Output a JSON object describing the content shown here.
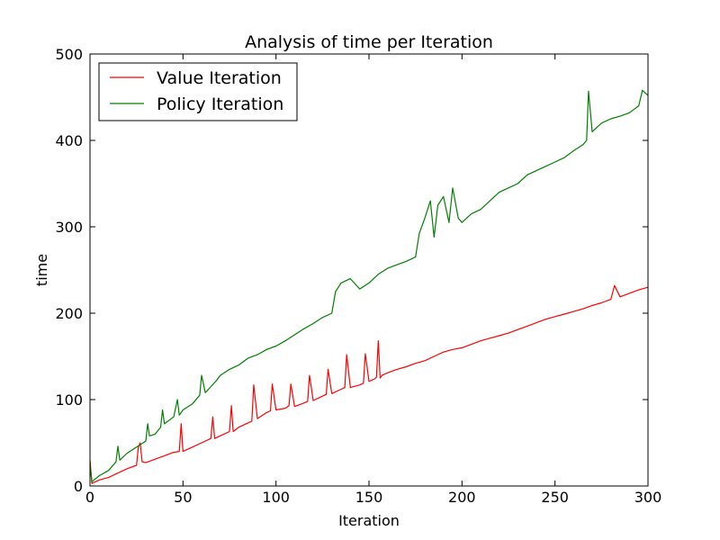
{
  "chart_data": {
    "type": "line",
    "title": "Analysis of time per Iteration",
    "xlabel": "Iteration",
    "ylabel": "time",
    "xlim": [
      0,
      300
    ],
    "ylim": [
      0,
      500
    ],
    "xticks": [
      "0",
      "50",
      "100",
      "150",
      "200",
      "250",
      "300"
    ],
    "yticks": [
      "0",
      "100",
      "200",
      "300",
      "400",
      "500"
    ],
    "grid": false,
    "legend_position": "top-left",
    "series": [
      {
        "name": "Value Iteration",
        "color": "#ff0000",
        "x": [
          0,
          1,
          5,
          10,
          15,
          20,
          25,
          26,
          27,
          28,
          30,
          35,
          40,
          45,
          48,
          49,
          50,
          55,
          60,
          65,
          66,
          67,
          70,
          75,
          76,
          77,
          80,
          85,
          87,
          88,
          90,
          95,
          97,
          98,
          100,
          105,
          107,
          108,
          110,
          115,
          117,
          118,
          120,
          125,
          127,
          128,
          130,
          135,
          137,
          138,
          140,
          145,
          147,
          148,
          150,
          153,
          154,
          155,
          156,
          157,
          160,
          165,
          170,
          175,
          180,
          185,
          190,
          195,
          200,
          205,
          210,
          215,
          220,
          225,
          230,
          235,
          240,
          245,
          250,
          255,
          260,
          265,
          270,
          275,
          280,
          282,
          285,
          290,
          295,
          300
        ],
        "y": [
          30,
          3,
          7,
          10,
          15,
          20,
          24,
          45,
          50,
          28,
          27,
          31,
          35,
          39,
          40,
          72,
          40,
          45,
          50,
          55,
          80,
          55,
          58,
          63,
          93,
          63,
          68,
          73,
          75,
          117,
          78,
          85,
          87,
          118,
          88,
          90,
          93,
          118,
          92,
          96,
          98,
          128,
          99,
          104,
          106,
          135,
          107,
          112,
          114,
          152,
          114,
          117,
          119,
          153,
          121,
          124,
          126,
          168,
          125,
          128,
          131,
          135,
          138,
          142,
          145,
          150,
          155,
          158,
          160,
          164,
          168,
          171,
          174,
          177,
          181,
          185,
          189,
          193,
          196,
          199,
          202,
          205,
          209,
          212,
          216,
          232,
          219,
          223,
          227,
          230
        ]
      },
      {
        "name": "Policy Iteration",
        "color": "#008000",
        "x": [
          0,
          1,
          5,
          10,
          14,
          15,
          16,
          20,
          25,
          30,
          31,
          32,
          35,
          38,
          39,
          40,
          45,
          47,
          48,
          50,
          55,
          59,
          60,
          62,
          65,
          68,
          70,
          75,
          80,
          85,
          90,
          95,
          100,
          105,
          110,
          115,
          120,
          125,
          130,
          132,
          135,
          140,
          145,
          150,
          155,
          160,
          165,
          170,
          175,
          177,
          180,
          183,
          185,
          187,
          190,
          193,
          195,
          198,
          200,
          205,
          210,
          215,
          220,
          225,
          230,
          235,
          240,
          245,
          250,
          255,
          260,
          265,
          267,
          268,
          270,
          275,
          280,
          285,
          290,
          295,
          297,
          300
        ],
        "y": [
          25,
          5,
          12,
          18,
          28,
          46,
          30,
          38,
          45,
          52,
          72,
          58,
          60,
          68,
          88,
          72,
          80,
          100,
          82,
          88,
          95,
          105,
          128,
          108,
          115,
          122,
          128,
          135,
          140,
          148,
          152,
          158,
          162,
          168,
          175,
          182,
          188,
          195,
          200,
          225,
          235,
          240,
          228,
          235,
          245,
          252,
          256,
          260,
          265,
          292,
          310,
          330,
          288,
          325,
          335,
          305,
          345,
          310,
          305,
          315,
          320,
          330,
          340,
          345,
          350,
          360,
          365,
          370,
          375,
          380,
          388,
          395,
          400,
          457,
          410,
          420,
          425,
          428,
          432,
          440,
          458,
          452
        ]
      }
    ]
  }
}
